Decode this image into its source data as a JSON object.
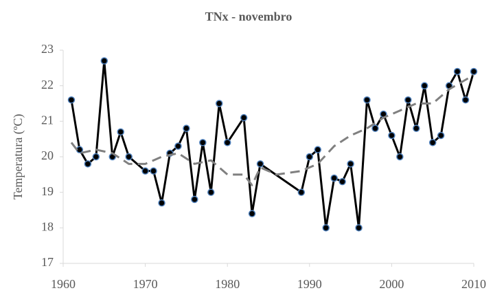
{
  "chart_data": {
    "type": "line",
    "title": "TNx - novembro",
    "y_label": "Temperatura (ºC)",
    "xlim": [
      1960,
      2010
    ],
    "xticks": [
      1960,
      1970,
      1980,
      1990,
      2000,
      2010
    ],
    "ylim": [
      17,
      23
    ],
    "yticks": [
      17,
      18,
      19,
      20,
      21,
      22,
      23
    ],
    "series": [
      {
        "color": "#000000",
        "marker_color": "#4f81bd",
        "dashed": false,
        "x": [
          1961,
          1962,
          1963,
          1964,
          1965,
          1966,
          1967,
          1968,
          1970,
          1971,
          1972,
          1973,
          1974,
          1975,
          1976,
          1977,
          1978,
          1979,
          1980,
          1982,
          1983,
          1984,
          1989,
          1990,
          1991,
          1992,
          1993,
          1994,
          1995,
          1996,
          1997,
          1998,
          1999,
          2000,
          2001,
          2002,
          2003,
          2004,
          2005,
          2006,
          2007,
          2008,
          2009,
          2010
        ],
        "values": [
          21.6,
          20.2,
          19.8,
          20.0,
          22.7,
          20.0,
          20.7,
          20.0,
          19.6,
          19.6,
          18.7,
          20.1,
          20.3,
          20.8,
          18.8,
          20.4,
          19.0,
          21.5,
          20.4,
          21.1,
          18.4,
          19.8,
          19.0,
          20.0,
          20.2,
          18.0,
          19.4,
          19.3,
          19.8,
          18.0,
          21.6,
          20.8,
          21.2,
          20.6,
          20.0,
          21.6,
          20.8,
          22.0,
          20.4,
          20.6,
          22.0,
          22.4,
          21.6,
          22.4
        ]
      },
      {
        "color": "#808080",
        "dashed": true,
        "x": [
          1961,
          1962,
          1964,
          1966,
          1968,
          1970,
          1972,
          1974,
          1976,
          1978,
          1980,
          1982,
          1983,
          1984,
          1986,
          1989,
          1991,
          1993,
          1995,
          1997,
          1999,
          2001,
          2003,
          2005,
          2007,
          2010
        ],
        "values": [
          20.4,
          20.1,
          20.2,
          20.1,
          19.8,
          19.8,
          20.0,
          20.1,
          19.8,
          19.9,
          19.5,
          19.5,
          19.2,
          19.7,
          19.5,
          19.6,
          19.8,
          20.3,
          20.6,
          20.8,
          21.1,
          21.3,
          21.5,
          21.5,
          21.9,
          22.3
        ]
      }
    ]
  }
}
